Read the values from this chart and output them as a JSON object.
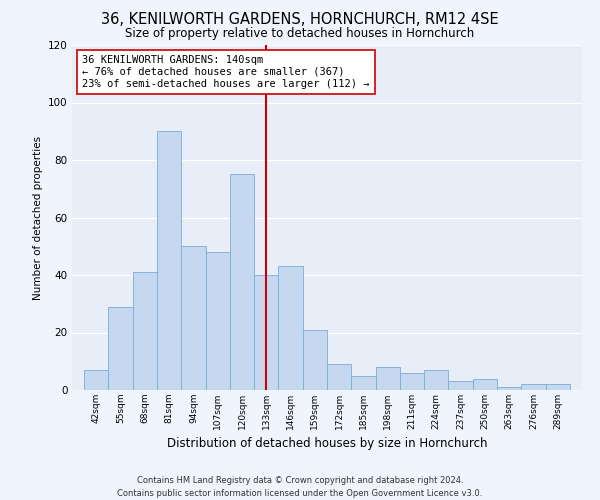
{
  "title": "36, KENILWORTH GARDENS, HORNCHURCH, RM12 4SE",
  "subtitle": "Size of property relative to detached houses in Hornchurch",
  "xlabel": "Distribution of detached houses by size in Hornchurch",
  "ylabel": "Number of detached properties",
  "bar_color": "#c5d8f0",
  "bar_edge_color": "#7aadd4",
  "background_color": "#e8eef8",
  "grid_color": "#ffffff",
  "vline_x": 139.5,
  "vline_color": "#cc0000",
  "annotation_text": "36 KENILWORTH GARDENS: 140sqm\n← 76% of detached houses are smaller (367)\n23% of semi-detached houses are larger (112) →",
  "annotation_box_edge_color": "#cc0000",
  "bins": [
    42,
    55,
    68,
    81,
    94,
    107,
    120,
    133,
    146,
    159,
    172,
    185,
    198,
    211,
    224,
    237,
    250,
    263,
    276,
    289,
    302
  ],
  "counts": [
    7,
    29,
    41,
    90,
    50,
    48,
    75,
    40,
    43,
    21,
    9,
    5,
    8,
    6,
    7,
    3,
    4,
    1,
    2,
    2
  ],
  "footer": "Contains HM Land Registry data © Crown copyright and database right 2024.\nContains public sector information licensed under the Open Government Licence v3.0.",
  "ylim": [
    0,
    120
  ],
  "yticks": [
    0,
    20,
    40,
    60,
    80,
    100,
    120
  ],
  "fig_bg": "#f0f4fc"
}
